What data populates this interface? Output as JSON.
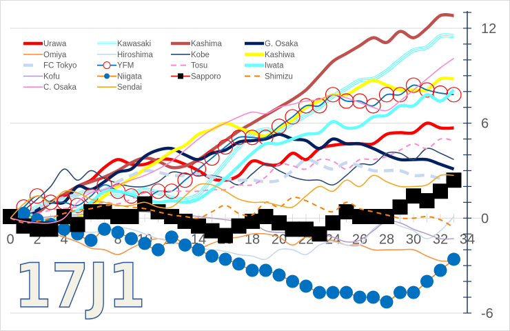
{
  "chart_data": {
    "type": "line",
    "title": "",
    "xlabel": "",
    "ylabel": "",
    "xlim": [
      0,
      34
    ],
    "ylim": [
      -6,
      13
    ],
    "xticks": [
      0,
      2,
      4,
      6,
      8,
      10,
      12,
      14,
      16,
      18,
      20,
      22,
      24,
      26,
      28,
      30,
      32,
      34
    ],
    "yticks": [
      -6,
      0,
      6,
      12
    ],
    "grid": "horizontal",
    "legend_position": "top-left",
    "y_axis_side": "right",
    "watermark": "17J1",
    "x": [
      0,
      1,
      2,
      3,
      4,
      5,
      6,
      7,
      8,
      9,
      10,
      11,
      12,
      13,
      14,
      15,
      16,
      17,
      18,
      19,
      20,
      21,
      22,
      23,
      24,
      25,
      26,
      27,
      28,
      29,
      30,
      31,
      32,
      33
    ],
    "series": [
      {
        "name": "Urawa",
        "color": "#ff0000",
        "style": "thick",
        "values": [
          0,
          0.3,
          0.5,
          1,
          1.4,
          2,
          2.4,
          3.2,
          3.7,
          3.4,
          3.4,
          3.7,
          3.7,
          3.4,
          3.0,
          2.5,
          2.4,
          2.7,
          3.6,
          3.4,
          3.4,
          4.1,
          3.7,
          4.4,
          4.6,
          4.7,
          4.7,
          4.7,
          5.3,
          5.4,
          5.4,
          6.0,
          5.7,
          5.7
        ]
      },
      {
        "name": "Kawasaki",
        "color": "#66ffff",
        "style": "triple",
        "values": [
          0,
          0.3,
          0.7,
          1,
          1.2,
          1.5,
          1.8,
          1.6,
          1.5,
          1.6,
          1.8,
          1.6,
          1.3,
          1.2,
          1.5,
          2.5,
          3.5,
          4.5,
          5.3,
          5.6,
          5.5,
          6.0,
          6.5,
          7.0,
          7.7,
          8.2,
          8.7,
          8.8,
          9.3,
          10.0,
          10.6,
          10.8,
          11.5,
          11.5
        ]
      },
      {
        "name": "Kashima",
        "color": "#c0504d",
        "style": "thick",
        "values": [
          0,
          0,
          0.3,
          1,
          1.5,
          2,
          2.3,
          2.6,
          3,
          3.5,
          3.8,
          3.6,
          3.2,
          3.3,
          3.7,
          4.3,
          4.9,
          5.5,
          6,
          6.5,
          7,
          7.5,
          8.1,
          9,
          9.9,
          10.4,
          10.9,
          11.4,
          11.1,
          11.8,
          11.4,
          12,
          12.8,
          12.8
        ]
      },
      {
        "name": "G. Osaka",
        "color": "#002060",
        "style": "thick",
        "values": [
          0,
          0.1,
          0.5,
          1.0,
          1.0,
          2.0,
          1.8,
          2.3,
          2.9,
          3.1,
          3.9,
          4.3,
          4.4,
          4.0,
          3.7,
          4.1,
          4.3,
          4.8,
          4.9,
          5.0,
          5.3,
          5.0,
          4.9,
          4.4,
          5.0,
          4.7,
          4.7,
          4.4,
          4.0,
          3.7,
          3.7,
          3.7,
          3.4,
          3.1
        ]
      },
      {
        "name": "Omiya",
        "color": "#f79646",
        "style": "thin",
        "values": [
          0,
          -0.2,
          -0.5,
          -0.9,
          -1.2,
          -1.5,
          -1.9,
          -2.0,
          -2.3,
          -1.9,
          -1.5,
          -1.3,
          -1.5,
          -1.7,
          -1.9,
          -1.6,
          -1.3,
          -1.2,
          -1.0,
          -1.0,
          -1.2,
          -1.7,
          -1.2,
          -1.4,
          -1.4,
          -1.7,
          -1.7,
          -2.0,
          -2.0,
          -2.0,
          -2.0,
          -2.4,
          -2.7,
          -2.7
        ]
      },
      {
        "name": "Hiroshima",
        "color": "#c6d9f1",
        "style": "thin",
        "values": [
          0,
          -0.2,
          -0.4,
          -0.6,
          -0.6,
          -0.8,
          -0.9,
          -0.8,
          -0.6,
          -0.7,
          -1.0,
          -1.3,
          -1.5,
          -1.8,
          -1.9,
          -2.0,
          -2.1,
          -2.3,
          -2.4,
          -2.6,
          -2.0,
          -2.0,
          -2.3,
          -1.7,
          -1.5,
          -1.7,
          -1.7,
          -0.7,
          -0.2,
          -0.5,
          -0.8,
          -1.3,
          -0.8,
          0.1
        ]
      },
      {
        "name": "Kobe",
        "color": "#2a4a75",
        "style": "thin",
        "values": [
          0,
          0.5,
          1.2,
          2.0,
          3.1,
          2.4,
          3.0,
          2.5,
          2.2,
          2.0,
          2.0,
          2.3,
          2.9,
          2.8,
          2.7,
          2.7,
          2.5,
          2.1,
          2.8,
          3.4,
          3.0,
          2.6,
          2.4,
          2.4,
          2.1,
          2.7,
          3.4,
          3.4,
          4.1,
          4.1,
          3.7,
          4.4,
          4.1,
          3.7
        ]
      },
      {
        "name": "Kashiwa",
        "color": "#ffff00",
        "style": "thick",
        "values": [
          0,
          0.2,
          -0.1,
          -0.5,
          -0.5,
          0,
          0.7,
          1.4,
          2,
          2.5,
          3.1,
          3.6,
          4.2,
          4.6,
          5.3,
          5.6,
          6,
          5.7,
          5.4,
          5.2,
          5.7,
          6.2,
          7,
          7.4,
          7.8,
          7.8,
          8.3,
          8.7,
          8.4,
          8.1,
          8.1,
          8.1,
          8.8,
          8.8
        ]
      },
      {
        "name": "FC Tokyo",
        "color": "#c6d9f1",
        "style": "thickdash",
        "values": [
          0,
          0.3,
          0.6,
          1,
          1.3,
          1.5,
          1.7,
          1.8,
          2.3,
          2.7,
          3.0,
          2.9,
          2.7,
          2.7,
          2.8,
          2.6,
          2.5,
          2.4,
          2.4,
          2.3,
          2.4,
          3.0,
          3.7,
          3.4,
          3.1,
          3.5,
          3.3,
          3.0,
          3.0,
          3.0,
          2.7,
          2.7,
          2.5,
          2.3
        ]
      },
      {
        "name": "YFM",
        "color": "#0070c0",
        "style": "ring",
        "marker_color": "#ff0000",
        "values": [
          0,
          0.7,
          1.4,
          1.0,
          1.0,
          0.8,
          1.4,
          2.1,
          1.7,
          1.4,
          1.2,
          1.7,
          1.7,
          2.4,
          3.1,
          3.8,
          4.5,
          5.1,
          5.1,
          5.1,
          5.8,
          6.4,
          7.1,
          7.1,
          7.8,
          7.4,
          7.4,
          7.1,
          7.8,
          7.8,
          8.4,
          8.1,
          7.9,
          7.8
        ]
      },
      {
        "name": "Tosu",
        "color": "#ff88cc",
        "style": "dash",
        "values": [
          0,
          0.2,
          0.3,
          0.5,
          0.6,
          0.7,
          0.8,
          1.0,
          0.9,
          1.2,
          1.6,
          1.7,
          1.7,
          1.7,
          1.7,
          1.8,
          1.8,
          2.1,
          2.1,
          2.6,
          3.4,
          3.3,
          3.1,
          3.7,
          3.6,
          3.1,
          3.7,
          3.7,
          3.9,
          4.3,
          4.7,
          4.4,
          5.0,
          4.9
        ]
      },
      {
        "name": "Iwata",
        "color": "#66ffff",
        "style": "thick",
        "values": [
          0,
          0.3,
          0,
          -0.2,
          0.2,
          0.5,
          1,
          1.7,
          1.7,
          1.5,
          1.2,
          1,
          1.1,
          1,
          1.2,
          1.8,
          2.5,
          3.3,
          4.1,
          4.7,
          4.7,
          5,
          5.3,
          5.4,
          6.1,
          5.7,
          5.8,
          6.4,
          6.5,
          7.1,
          7.1,
          7.8,
          7.4,
          8.1
        ]
      },
      {
        "name": "Kofu",
        "color": "#b3a2c7",
        "style": "thin",
        "values": [
          0,
          -0.1,
          0,
          0.1,
          0.2,
          0.2,
          0.3,
          0.3,
          0.3,
          0.4,
          0.4,
          0.3,
          0.3,
          0.2,
          0.1,
          0,
          -0.1,
          -0.2,
          -0.3,
          -0.8,
          -0.9,
          -0.9,
          -0.9,
          -1.0,
          -1.2,
          -1.5,
          -1.4,
          -0.8,
          -0.2,
          -0.3,
          -0.7,
          -1.0,
          -1.3,
          -1.3
        ]
      },
      {
        "name": "Niigata",
        "color": "#ff7f00",
        "style": "dot",
        "marker_color": "#0070c0",
        "values": [
          0,
          0.3,
          -0.1,
          -0.4,
          -0.7,
          -1.0,
          -1.4,
          -0.7,
          -0.9,
          -1.3,
          -1.6,
          -2.0,
          -1.2,
          -1.7,
          -2.0,
          -2.4,
          -2.6,
          -2.9,
          -3.3,
          -3.3,
          -3.6,
          -4.0,
          -4.3,
          -4.7,
          -4.7,
          -4.7,
          -5.0,
          -5.0,
          -5.3,
          -4.7,
          -4.7,
          -4.0,
          -3.3,
          -2.6
        ]
      },
      {
        "name": "Sapporo",
        "color": "#ff0000",
        "style": "square",
        "marker_color": "#000000",
        "values": [
          0.1,
          -0.5,
          -0.7,
          -0.7,
          0.1,
          -0.4,
          0.4,
          0.4,
          0.1,
          0.1,
          0.9,
          0.4,
          0.1,
          -0.2,
          -0.5,
          -0.8,
          -1.1,
          -0.5,
          -0.2,
          0.1,
          -0.3,
          -0.7,
          -0.7,
          -1.0,
          -0.3,
          0.4,
          0.1,
          0.1,
          0.1,
          0.7,
          1.4,
          1.1,
          1.7,
          2.4
        ]
      },
      {
        "name": "Shimizu",
        "color": "#ff7f00",
        "style": "dash",
        "values": [
          0,
          -0.3,
          -0.2,
          0,
          0.3,
          0.5,
          0.6,
          0.8,
          0.8,
          0.7,
          0.6,
          0.4,
          0.2,
          0.1,
          0,
          0.4,
          0.8,
          0.3,
          0.2,
          1.0,
          0.7,
          1.3,
          1.1,
          0.7,
          0.4,
          1.0,
          0.6,
          0.4,
          0.2,
          0,
          0,
          0.1,
          -0.1,
          -0.6
        ]
      },
      {
        "name": "C. Osaka",
        "color": "#ff88cc",
        "style": "thin",
        "values": [
          0,
          -0.2,
          -0.3,
          -0.3,
          0,
          1,
          1.6,
          1.8,
          2.1,
          2.4,
          2.7,
          3.1,
          3.6,
          4.3,
          5,
          5.6,
          6,
          6.4,
          6.7,
          6.6,
          7,
          7.2,
          7.4,
          7.5,
          7.8,
          7.6,
          7.3,
          7,
          6.8,
          7.4,
          8.1,
          8.8,
          9.5,
          10.1
        ]
      },
      {
        "name": "Sendai",
        "color": "#f5a623",
        "style": "thin",
        "values": [
          0,
          0.9,
          1.4,
          1.0,
          1.7,
          1.6,
          1.2,
          1.0,
          0.8,
          0.8,
          1.0,
          0.7,
          0.7,
          1.4,
          2.1,
          2.1,
          1.7,
          1.2,
          1.0,
          1.0,
          0.8,
          0.7,
          1.4,
          2.0,
          1.7,
          2.4,
          2.0,
          2.7,
          2.3,
          2.0,
          2.0,
          2.1,
          2.7,
          2.7
        ]
      }
    ]
  }
}
